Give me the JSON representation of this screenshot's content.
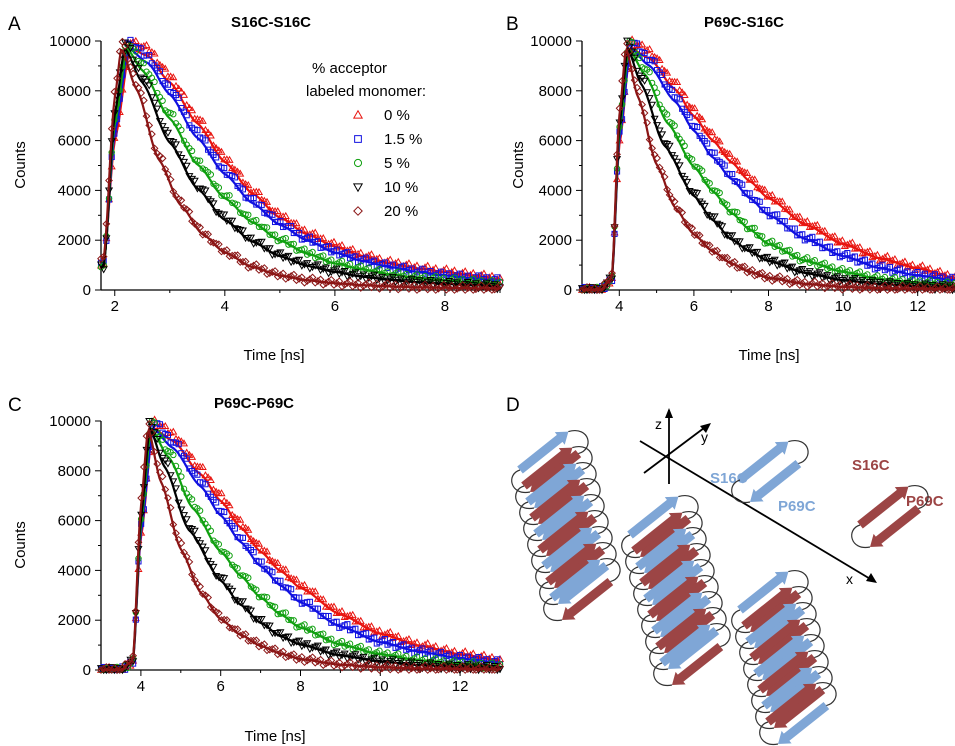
{
  "panel_letters": [
    "A",
    "B",
    "C",
    "D"
  ],
  "colors": {
    "series": [
      "#e8140f",
      "#1010e0",
      "#10a010",
      "#000000",
      "#8b1515"
    ],
    "strand_blue": "#7fa6d6",
    "strand_red": "#9c4545",
    "label_blue": "#7fa6d6",
    "label_red": "#9c4545"
  },
  "chart_data": [
    {
      "type": "scatter",
      "panel": "A",
      "title": "S16C-S16C",
      "xlabel": "Time [ns]",
      "ylabel": "Counts",
      "xlim": [
        1.75,
        9.0
      ],
      "ylim": [
        0,
        10000
      ],
      "xticks": [
        2,
        4,
        6,
        8
      ],
      "yticks": [
        0,
        2000,
        4000,
        6000,
        8000,
        10000
      ],
      "grid": false,
      "legend": {
        "title_lines": [
          "% acceptor",
          "labeled monomer:"
        ],
        "placement": "top-right",
        "entries": [
          "0 %",
          "1.5 %",
          "5 %",
          "10 %",
          "20 %"
        ],
        "markers": [
          "triangle-up",
          "square",
          "circle",
          "triangle-down",
          "diamond"
        ]
      },
      "series": [
        {
          "name": "0 %",
          "marker": "triangle-up",
          "peak_x": 2.28,
          "peak_y": 10000,
          "tail_y": 450,
          "x": [
            1.8,
            2.0,
            2.28,
            2.6,
            3.0,
            3.5,
            4.0,
            4.5,
            5.0,
            5.5,
            6.0,
            6.5,
            7.0,
            7.5,
            8.0,
            8.5,
            9.0
          ],
          "y": [
            1100,
            6200,
            10000,
            9700,
            8600,
            6900,
            5300,
            4000,
            3000,
            2300,
            1800,
            1400,
            1100,
            900,
            750,
            600,
            450
          ]
        },
        {
          "name": "1.5 %",
          "marker": "square",
          "peak_x": 2.25,
          "peak_y": 10000,
          "tail_y": 380,
          "x": [
            1.8,
            2.0,
            2.25,
            2.6,
            3.0,
            3.5,
            4.0,
            4.5,
            5.0,
            5.5,
            6.0,
            6.5,
            7.0,
            7.5,
            8.0,
            8.5,
            9.0
          ],
          "y": [
            1050,
            6500,
            10000,
            9400,
            8100,
            6300,
            4800,
            3600,
            2700,
            2050,
            1550,
            1200,
            950,
            750,
            600,
            480,
            380
          ]
        },
        {
          "name": "5 %",
          "marker": "circle",
          "peak_x": 2.22,
          "peak_y": 10000,
          "tail_y": 250,
          "x": [
            1.8,
            2.0,
            2.22,
            2.5,
            3.0,
            3.5,
            4.0,
            4.5,
            5.0,
            5.5,
            6.0,
            6.5,
            7.0,
            7.5,
            8.0,
            8.5,
            9.0
          ],
          "y": [
            1000,
            6900,
            10000,
            9100,
            7100,
            5200,
            3800,
            2800,
            2050,
            1500,
            1100,
            850,
            650,
            500,
            400,
            320,
            250
          ]
        },
        {
          "name": "10 %",
          "marker": "triangle-down",
          "peak_x": 2.18,
          "peak_y": 10000,
          "tail_y": 150,
          "x": [
            1.8,
            2.0,
            2.18,
            2.5,
            3.0,
            3.5,
            4.0,
            4.5,
            5.0,
            5.5,
            6.0,
            6.5,
            7.0,
            7.5,
            8.0,
            8.5,
            9.0
          ],
          "y": [
            950,
            7300,
            10000,
            8600,
            6100,
            4200,
            2900,
            2000,
            1400,
            1000,
            750,
            550,
            420,
            320,
            250,
            200,
            150
          ]
        },
        {
          "name": "20 %",
          "marker": "diamond",
          "peak_x": 2.12,
          "peak_y": 10000,
          "tail_y": 60,
          "x": [
            1.8,
            2.0,
            2.12,
            2.4,
            2.8,
            3.2,
            3.6,
            4.0,
            4.5,
            5.0,
            5.5,
            6.0,
            6.5,
            7.0,
            7.5,
            8.0,
            9.0
          ],
          "y": [
            1300,
            8000,
            10000,
            8300,
            5400,
            3500,
            2300,
            1550,
            950,
            600,
            400,
            280,
            200,
            150,
            110,
            90,
            60
          ]
        }
      ]
    },
    {
      "type": "scatter",
      "panel": "B",
      "title": "P69C-S16C",
      "xlabel": "Time [ns]",
      "ylabel": "Counts",
      "xlim": [
        3.0,
        13.0
      ],
      "ylim": [
        0,
        10000
      ],
      "xticks": [
        4,
        6,
        8,
        10,
        12
      ],
      "yticks": [
        0,
        2000,
        4000,
        6000,
        8000,
        10000
      ],
      "grid": false,
      "series": [
        {
          "name": "0 %",
          "marker": "triangle-up",
          "x": [
            3.0,
            3.5,
            3.8,
            4.0,
            4.3,
            4.8,
            5.5,
            6.0,
            6.5,
            7.0,
            7.5,
            8.0,
            9.0,
            10.0,
            11.0,
            12.0,
            13.0
          ],
          "y": [
            0,
            0,
            400,
            6000,
            10000,
            9600,
            8300,
            7200,
            6200,
            5300,
            4500,
            3800,
            2700,
            1900,
            1300,
            900,
            500
          ]
        },
        {
          "name": "1.5 %",
          "marker": "square",
          "x": [
            3.0,
            3.5,
            3.8,
            4.0,
            4.3,
            4.8,
            5.5,
            6.0,
            6.5,
            7.0,
            7.5,
            8.0,
            9.0,
            10.0,
            11.0,
            12.0,
            13.0
          ],
          "y": [
            0,
            0,
            400,
            6200,
            10000,
            9300,
            7800,
            6600,
            5500,
            4600,
            3800,
            3100,
            2100,
            1400,
            900,
            600,
            400
          ]
        },
        {
          "name": "5 %",
          "marker": "circle",
          "x": [
            3.0,
            3.5,
            3.8,
            4.0,
            4.25,
            4.7,
            5.3,
            6.0,
            6.5,
            7.0,
            7.5,
            8.0,
            9.0,
            10.0,
            11.0,
            12.0,
            13.0
          ],
          "y": [
            0,
            0,
            450,
            6500,
            10000,
            8900,
            6900,
            5100,
            4100,
            3200,
            2500,
            1900,
            1200,
            750,
            450,
            300,
            200
          ]
        },
        {
          "name": "10 %",
          "marker": "triangle-down",
          "x": [
            3.0,
            3.5,
            3.8,
            4.0,
            4.22,
            4.6,
            5.2,
            6.0,
            6.5,
            7.0,
            7.5,
            8.0,
            9.0,
            10.0,
            11.0,
            12.0,
            13.0
          ],
          "y": [
            0,
            0,
            450,
            6800,
            10000,
            8500,
            6000,
            3900,
            2900,
            2100,
            1600,
            1200,
            700,
            400,
            250,
            150,
            100
          ]
        },
        {
          "name": "20 %",
          "marker": "diamond",
          "x": [
            3.0,
            3.5,
            3.8,
            4.0,
            4.18,
            4.5,
            5.0,
            5.5,
            6.0,
            6.5,
            7.0,
            7.5,
            8.0,
            9.0,
            10.0,
            11.0,
            13.0
          ],
          "y": [
            0,
            0,
            500,
            7200,
            10000,
            8000,
            5200,
            3400,
            2300,
            1600,
            1100,
            750,
            500,
            250,
            130,
            70,
            30
          ]
        }
      ]
    },
    {
      "type": "scatter",
      "panel": "C",
      "title": "P69C-P69C",
      "xlabel": "Time [ns]",
      "ylabel": "Counts",
      "xlim": [
        3.0,
        13.0
      ],
      "ylim": [
        0,
        10000
      ],
      "xticks": [
        4,
        6,
        8,
        10,
        12
      ],
      "yticks": [
        0,
        2000,
        4000,
        6000,
        8000,
        10000
      ],
      "grid": false,
      "series": [
        {
          "name": "0 %",
          "marker": "triangle-up",
          "x": [
            3.0,
            3.5,
            3.8,
            4.0,
            4.3,
            4.8,
            5.5,
            6.0,
            6.5,
            7.0,
            7.5,
            8.0,
            9.0,
            10.0,
            11.0,
            12.0,
            13.0
          ],
          "y": [
            0,
            0,
            300,
            5500,
            10000,
            9500,
            8100,
            7000,
            5900,
            4900,
            4100,
            3400,
            2300,
            1500,
            1000,
            650,
            400
          ]
        },
        {
          "name": "1.5 %",
          "marker": "square",
          "x": [
            3.0,
            3.5,
            3.8,
            4.0,
            4.3,
            4.8,
            5.5,
            6.0,
            6.5,
            7.0,
            7.5,
            8.0,
            9.0,
            10.0,
            11.0,
            12.0,
            13.0
          ],
          "y": [
            0,
            0,
            300,
            5700,
            10000,
            9200,
            7600,
            6400,
            5300,
            4300,
            3500,
            2800,
            1800,
            1150,
            750,
            480,
            300
          ]
        },
        {
          "name": "5 %",
          "marker": "circle",
          "x": [
            3.0,
            3.5,
            3.8,
            4.0,
            4.25,
            4.7,
            5.3,
            6.0,
            6.5,
            7.0,
            7.5,
            8.0,
            9.0,
            10.0,
            11.0,
            12.0,
            13.0
          ],
          "y": [
            0,
            0,
            350,
            6000,
            10000,
            8800,
            6700,
            4900,
            3900,
            3000,
            2300,
            1750,
            1050,
            650,
            400,
            250,
            150
          ]
        },
        {
          "name": "10 %",
          "marker": "triangle-down",
          "x": [
            3.0,
            3.5,
            3.8,
            4.0,
            4.22,
            4.6,
            5.2,
            6.0,
            6.5,
            7.0,
            7.5,
            8.0,
            9.0,
            10.0,
            11.0,
            12.0,
            13.0
          ],
          "y": [
            0,
            0,
            350,
            6300,
            10000,
            8400,
            5800,
            3700,
            2700,
            1950,
            1400,
            1050,
            600,
            350,
            200,
            120,
            80
          ]
        },
        {
          "name": "20 %",
          "marker": "diamond",
          "x": [
            3.0,
            3.5,
            3.8,
            4.0,
            4.18,
            4.5,
            5.0,
            5.5,
            6.0,
            6.5,
            7.0,
            7.5,
            8.0,
            9.0,
            10.0,
            11.0,
            13.0
          ],
          "y": [
            0,
            0,
            400,
            6800,
            10000,
            7800,
            5000,
            3200,
            2100,
            1450,
            1000,
            680,
            450,
            220,
            110,
            60,
            25
          ]
        }
      ]
    }
  ],
  "diagram": {
    "axis_labels": {
      "z": "z",
      "y": "y",
      "x": "x"
    },
    "labels": [
      {
        "text": "S16C",
        "color": "blue"
      },
      {
        "text": "P69C",
        "color": "blue"
      },
      {
        "text": "S16C",
        "color": "red"
      },
      {
        "text": "P69C",
        "color": "red"
      }
    ]
  }
}
